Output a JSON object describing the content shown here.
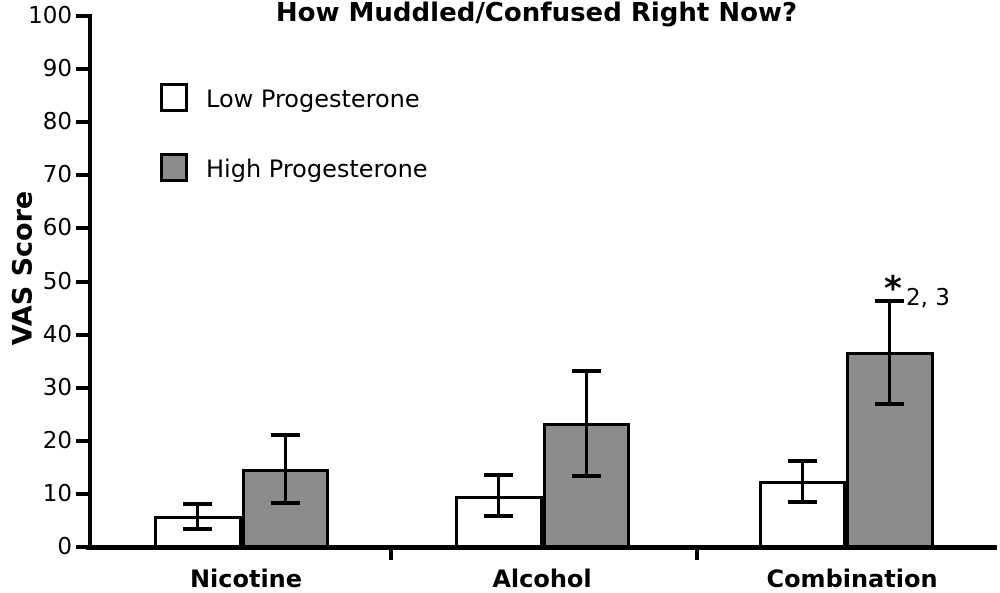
{
  "chart_data": {
    "type": "bar",
    "title": "How Muddled/Confused Right Now?",
    "xlabel": "",
    "ylabel": "VAS Score",
    "ylim": [
      0,
      100
    ],
    "yticks": [
      0,
      10,
      20,
      30,
      40,
      50,
      60,
      70,
      80,
      90,
      100
    ],
    "grid": false,
    "legend_position": "upper left inside plot",
    "categories": [
      "Nicotine",
      "Alcohol",
      "Combination"
    ],
    "series": [
      {
        "name": "Low Progesterone",
        "fill": "#ffffff",
        "values": [
          5.8,
          9.7,
          12.4
        ],
        "errors": [
          2.4,
          3.9,
          3.8
        ]
      },
      {
        "name": "High Progesterone",
        "fill": "#8c8c8c",
        "values": [
          14.8,
          23.3,
          36.7
        ],
        "errors": [
          6.4,
          9.9,
          9.7
        ]
      }
    ],
    "annotations": [
      {
        "star": "*",
        "note": "2, 3",
        "category": "Combination",
        "series": "High Progesterone",
        "location": "above error bar"
      }
    ],
    "colors": {
      "background": "#ffffff",
      "bar_low_fill": "#ffffff",
      "bar_high_fill": "#8c8c8c",
      "outline": "#000000",
      "axis": "#000000",
      "text": "#000000"
    }
  }
}
